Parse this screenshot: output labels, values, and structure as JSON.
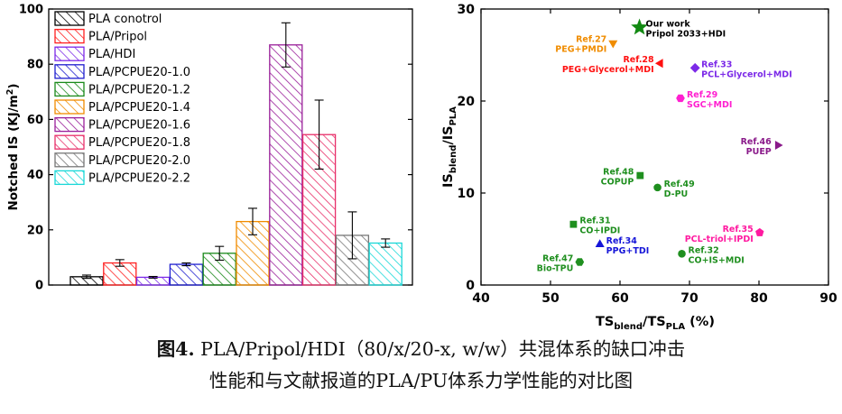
{
  "caption": {
    "figure_label": "图4.",
    "line1_text": " PLA/Pripol/HDI（80/x/20-x, w/w）共混体系的缺口冲击",
    "line2": "性能和与文献报道的PLA/PU体系力学性能的对比图"
  },
  "chart_data": [
    {
      "type": "bar",
      "title": "",
      "xlabel": "",
      "ylabel": "Notched IS (KJ/m²)",
      "ylabel_main": "Notched IS (KJ/m",
      "ylabel_sup": "2",
      "ylabel_tail": ")",
      "ylim": [
        0,
        100
      ],
      "yticks": [
        0,
        20,
        40,
        60,
        80,
        100
      ],
      "legend_position": "top-left",
      "categories": [
        "PLA conotrol",
        "PLA/Pripol",
        "PLA/HDI",
        "PLA/PCPUE20-1.0",
        "PLA/PCPUE20-1.2",
        "PLA/PCPUE20-1.4",
        "PLA/PCPUE20-1.6",
        "PLA/PCPUE20-1.8",
        "PLA/PCPUE20-2.0",
        "PLA/PCPUE20-2.2"
      ],
      "values": [
        3.0,
        8.0,
        2.8,
        7.5,
        11.5,
        23.0,
        87.0,
        54.5,
        18.0,
        15.2
      ],
      "errors": [
        0.6,
        1.2,
        0.3,
        0.5,
        2.5,
        4.8,
        8.0,
        12.5,
        8.5,
        1.5
      ],
      "colors": [
        "#000000",
        "#ff2020",
        "#7c2ae8",
        "#1f1fcf",
        "#1b8a1b",
        "#f08c00",
        "#9a1f9a",
        "#e8306a",
        "#777777",
        "#1ad8d8"
      ]
    },
    {
      "type": "scatter",
      "title": "",
      "xlabel": "TS_blend/TS_PLA (%)",
      "xlabel_parts": {
        "a": "TS",
        "b": "blend",
        "c": "/TS",
        "d": "PLA",
        "e": " (%)"
      },
      "ylabel": "IS_blend/IS_PLA",
      "ylabel_parts": {
        "a": "IS",
        "b": "blend",
        "c": "/IS",
        "d": "PLA"
      },
      "xlim": [
        40,
        90
      ],
      "ylim": [
        0,
        30
      ],
      "xticks": [
        40,
        50,
        60,
        70,
        80,
        90
      ],
      "yticks": [
        0,
        10,
        20,
        30
      ],
      "points": [
        {
          "x": 62.8,
          "y": 28.0,
          "marker": "star",
          "color": "#138a13",
          "ref": "Our work",
          "label": "Pripol 2033+HDI",
          "label_side": "right"
        },
        {
          "x": 59.0,
          "y": 26.3,
          "marker": "triangle-down",
          "color": "#f08c00",
          "ref": "Ref.27",
          "label": "PEG+PMDI",
          "label_side": "left"
        },
        {
          "x": 65.8,
          "y": 24.1,
          "marker": "triangle-left",
          "color": "#ff1010",
          "ref": "Ref.28",
          "label": "PEG+Glycerol+MDI",
          "label_side": "left"
        },
        {
          "x": 70.8,
          "y": 23.6,
          "marker": "diamond",
          "color": "#7c2ae8",
          "ref": "Ref.33",
          "label": "PCL+Glycerol+MDI",
          "label_side": "right"
        },
        {
          "x": 68.7,
          "y": 20.3,
          "marker": "hexagon",
          "color": "#ff20d0",
          "ref": "Ref.29",
          "label": "SGC+MDI",
          "label_side": "right"
        },
        {
          "x": 82.7,
          "y": 15.2,
          "marker": "triangle-right",
          "color": "#8a1a8a",
          "ref": "Ref.46",
          "label": "PUEP",
          "label_side": "left"
        },
        {
          "x": 62.9,
          "y": 11.9,
          "marker": "square",
          "color": "#1f8f1f",
          "ref": "Ref.48",
          "label": "COPUP",
          "label_side": "left"
        },
        {
          "x": 65.4,
          "y": 10.6,
          "marker": "circle",
          "color": "#1f8f1f",
          "ref": "Ref.49",
          "label": "D-PU",
          "label_side": "right"
        },
        {
          "x": 53.3,
          "y": 6.6,
          "marker": "square",
          "color": "#1f8f1f",
          "ref": "Ref.31",
          "label": "CO+IPDI",
          "label_side": "right"
        },
        {
          "x": 57.1,
          "y": 4.4,
          "marker": "triangle-up",
          "color": "#1515d8",
          "ref": "Ref.34",
          "label": "PPG+TDI",
          "label_side": "right"
        },
        {
          "x": 80.1,
          "y": 5.7,
          "marker": "pentagon",
          "color": "#ff1aa0",
          "ref": "Ref.35",
          "label": "PCL-triol+IPDI",
          "label_side": "left"
        },
        {
          "x": 68.9,
          "y": 3.4,
          "marker": "circle",
          "color": "#1f8f1f",
          "ref": "Ref.32",
          "label": "CO+IS+MDI",
          "label_side": "right"
        },
        {
          "x": 54.2,
          "y": 2.5,
          "marker": "hexagon",
          "color": "#1f8f1f",
          "ref": "Ref.47",
          "label": "Bio-TPU",
          "label_side": "left"
        }
      ]
    }
  ]
}
